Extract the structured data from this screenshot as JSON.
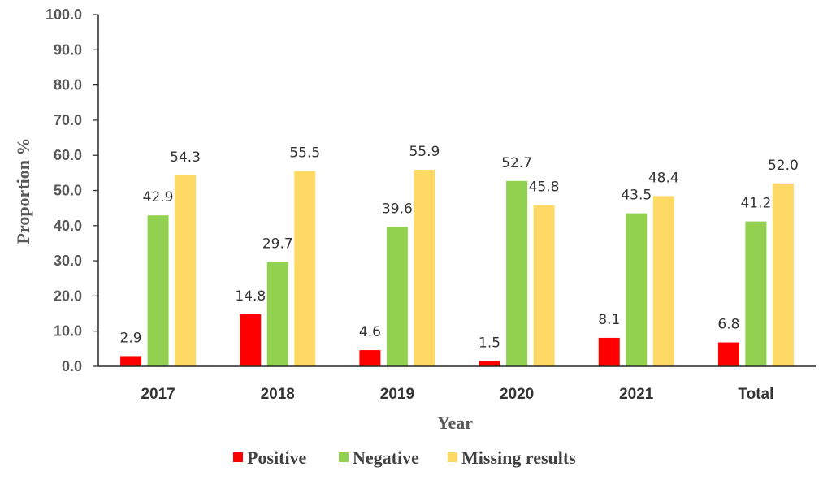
{
  "chart_data": {
    "type": "bar",
    "categories": [
      "2017",
      "2018",
      "2019",
      "2020",
      "2021",
      "Total"
    ],
    "series": [
      {
        "name": "Positive",
        "color": "#ff0000",
        "values": [
          2.9,
          14.8,
          4.6,
          1.5,
          8.1,
          6.8
        ]
      },
      {
        "name": "Negative",
        "color": "#92d050",
        "values": [
          42.9,
          29.7,
          39.6,
          52.7,
          43.5,
          41.2
        ]
      },
      {
        "name": "Missing results",
        "color": "#ffd966",
        "values": [
          54.3,
          55.5,
          55.9,
          45.8,
          48.4,
          52.0
        ]
      }
    ],
    "data_labels": [
      [
        "2.9",
        "14.8",
        "4.6",
        "1.5",
        "8.1",
        "6.8"
      ],
      [
        "42.9",
        "29.7",
        "39.6",
        "52.7",
        "43.5",
        "41.2"
      ],
      [
        "54.3",
        "55.5",
        "55.9",
        "45.8",
        "48.4",
        "52.0"
      ]
    ],
    "title": "",
    "xlabel": "Year",
    "ylabel": "Proportion %",
    "ylim": [
      0,
      100
    ],
    "yticks": [
      "0.0",
      "10.0",
      "20.0",
      "30.0",
      "40.0",
      "50.0",
      "60.0",
      "70.0",
      "80.0",
      "90.0",
      "100.0"
    ],
    "legend": "bottom",
    "grid": false
  }
}
